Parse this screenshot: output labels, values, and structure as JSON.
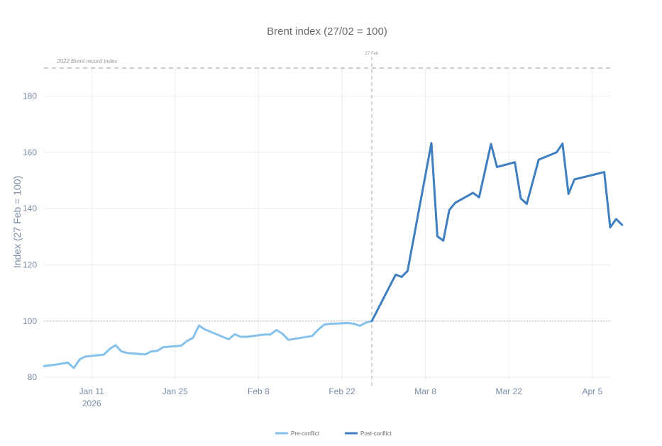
{
  "chart_data": {
    "type": "line",
    "title": "Brent index (27/02 = 100)",
    "ylabel": "Index (27 Feb = 100)",
    "xlabel": "",
    "ylim": [
      79,
      190
    ],
    "xlim": [
      "2026-01-03",
      "2026-04-08"
    ],
    "yticks": [
      80,
      100,
      120,
      140,
      160,
      180
    ],
    "xticks": [
      {
        "date": "2026-01-11",
        "label": "Jan 11",
        "sublabel": "2026"
      },
      {
        "date": "2026-01-25",
        "label": "Jan 25",
        "sublabel": ""
      },
      {
        "date": "2026-02-08",
        "label": "Feb 8",
        "sublabel": ""
      },
      {
        "date": "2026-02-22",
        "label": "Feb 22",
        "sublabel": ""
      },
      {
        "date": "2026-03-08",
        "label": "Mar 8",
        "sublabel": ""
      },
      {
        "date": "2026-03-22",
        "label": "Mar 22",
        "sublabel": ""
      },
      {
        "date": "2026-04-05",
        "label": "Apr 5",
        "sublabel": ""
      }
    ],
    "grid": true,
    "legend_position": "bottom-center",
    "reference_lines": [
      {
        "axis": "y",
        "value": 190,
        "label": "2022 Brent record index",
        "style": "dashed"
      },
      {
        "axis": "y",
        "value": 100,
        "label": "",
        "style": "dotted"
      },
      {
        "axis": "x",
        "value": "2026-02-27",
        "label": "27 Feb",
        "style": "dashed"
      }
    ],
    "series": [
      {
        "name": "Pre-conflict",
        "color": "#85c1ea",
        "points": [
          [
            "2026-01-03",
            84.0
          ],
          [
            "2026-01-05",
            84.5
          ],
          [
            "2026-01-07",
            85.2
          ],
          [
            "2026-01-08",
            83.3
          ],
          [
            "2026-01-09",
            86.4
          ],
          [
            "2026-01-10",
            87.4
          ],
          [
            "2026-01-13",
            88.0
          ],
          [
            "2026-01-14",
            90.0
          ],
          [
            "2026-01-15",
            91.4
          ],
          [
            "2026-01-16",
            89.2
          ],
          [
            "2026-01-17",
            88.6
          ],
          [
            "2026-01-20",
            88.1
          ],
          [
            "2026-01-21",
            89.2
          ],
          [
            "2026-01-22",
            89.4
          ],
          [
            "2026-01-23",
            90.7
          ],
          [
            "2026-01-26",
            91.2
          ],
          [
            "2026-01-27",
            92.9
          ],
          [
            "2026-01-28",
            94.0
          ],
          [
            "2026-01-29",
            98.4
          ],
          [
            "2026-01-30",
            97.0
          ],
          [
            "2026-02-03",
            93.5
          ],
          [
            "2026-02-04",
            95.3
          ],
          [
            "2026-02-05",
            94.4
          ],
          [
            "2026-02-06",
            94.4
          ],
          [
            "2026-02-09",
            95.2
          ],
          [
            "2026-02-10",
            95.2
          ],
          [
            "2026-02-11",
            96.8
          ],
          [
            "2026-02-12",
            95.5
          ],
          [
            "2026-02-13",
            93.3
          ],
          [
            "2026-02-17",
            94.7
          ],
          [
            "2026-02-18",
            96.9
          ],
          [
            "2026-02-19",
            98.7
          ],
          [
            "2026-02-20",
            99.0
          ],
          [
            "2026-02-23",
            99.3
          ],
          [
            "2026-02-24",
            99.0
          ],
          [
            "2026-02-25",
            98.3
          ],
          [
            "2026-02-26",
            99.4
          ],
          [
            "2026-02-27",
            100.0
          ]
        ]
      },
      {
        "name": "Post-conflict",
        "color": "#3f7fbf",
        "points": [
          [
            "2026-02-27",
            100.0
          ],
          [
            "2026-03-03",
            116.5
          ],
          [
            "2026-03-04",
            115.7
          ],
          [
            "2026-03-05",
            117.8
          ],
          [
            "2026-03-09",
            163.3
          ],
          [
            "2026-03-10",
            130.1
          ],
          [
            "2026-03-11",
            128.6
          ],
          [
            "2026-03-12",
            139.5
          ],
          [
            "2026-03-13",
            142.1
          ],
          [
            "2026-03-16",
            145.6
          ],
          [
            "2026-03-17",
            144.0
          ],
          [
            "2026-03-19",
            163.0
          ],
          [
            "2026-03-20",
            154.8
          ],
          [
            "2026-03-23",
            156.5
          ],
          [
            "2026-03-24",
            143.6
          ],
          [
            "2026-03-25",
            141.7
          ],
          [
            "2026-03-27",
            157.4
          ],
          [
            "2026-03-30",
            160.0
          ],
          [
            "2026-03-31",
            163.1
          ],
          [
            "2026-04-01",
            145.2
          ],
          [
            "2026-04-02",
            150.4
          ],
          [
            "2026-04-07",
            153.0
          ],
          [
            "2026-04-08",
            133.3
          ],
          [
            "2026-04-09",
            136.3
          ],
          [
            "2026-04-10",
            134.2
          ]
        ]
      }
    ]
  }
}
